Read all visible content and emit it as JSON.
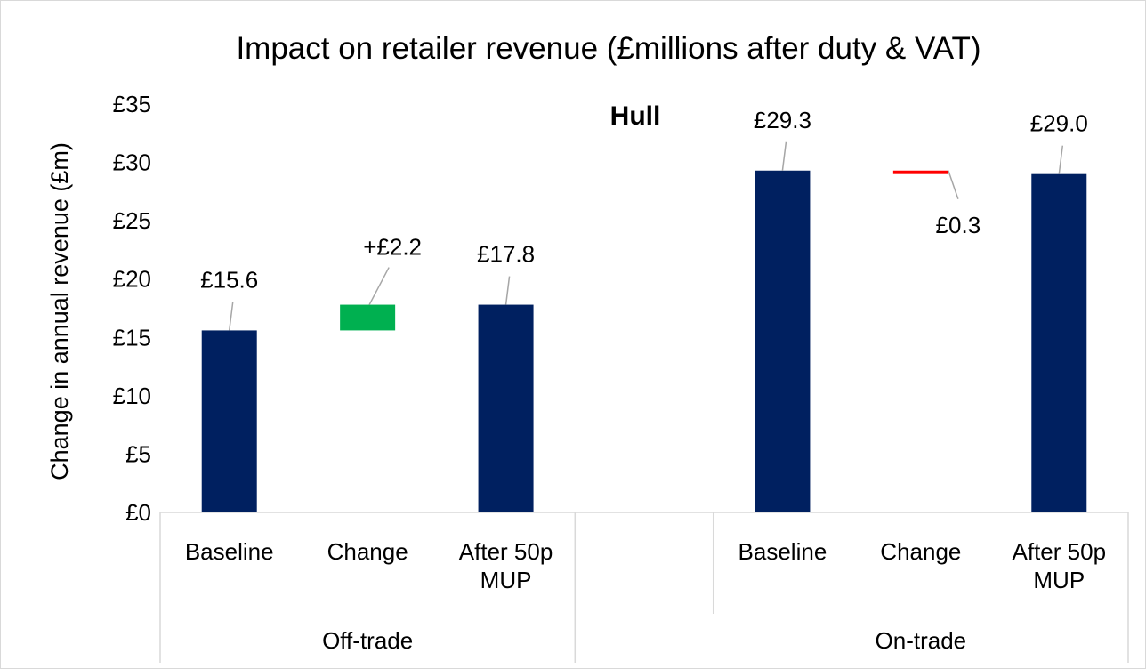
{
  "chart_data": {
    "type": "waterfall",
    "title": "Impact on retailer revenue (£millions after duty & VAT)",
    "subtitle": "Hull",
    "y_label": "Change in annual  revenue  (£m)",
    "ylim": [
      0,
      35
    ],
    "yticks": [
      {
        "value": 0,
        "label": "£0"
      },
      {
        "value": 5,
        "label": "£5"
      },
      {
        "value": 10,
        "label": "£10"
      },
      {
        "value": 15,
        "label": "£15"
      },
      {
        "value": 20,
        "label": "£20"
      },
      {
        "value": 25,
        "label": "£25"
      },
      {
        "value": 30,
        "label": "£30"
      },
      {
        "value": 35,
        "label": "£35"
      }
    ],
    "colors": {
      "total": "#002060",
      "increase": "#00b050",
      "decrease": "#ff0000"
    },
    "groups": [
      {
        "name": "Off-trade",
        "categories": [
          "Baseline",
          "Change",
          "After 50p MUP"
        ],
        "measures": [
          "absolute",
          "relative",
          "total"
        ],
        "values": [
          15.6,
          2.2,
          17.8
        ],
        "value_labels": [
          "£15.6",
          "+£2.2",
          "£17.8"
        ]
      },
      {
        "name": "On-trade",
        "categories": [
          "Baseline",
          "Change",
          "After 50p MUP"
        ],
        "measures": [
          "absolute",
          "relative",
          "total"
        ],
        "values": [
          29.3,
          -0.3,
          29.0
        ],
        "value_labels": [
          "£29.3",
          "£0.3",
          "£29.0"
        ]
      }
    ]
  }
}
